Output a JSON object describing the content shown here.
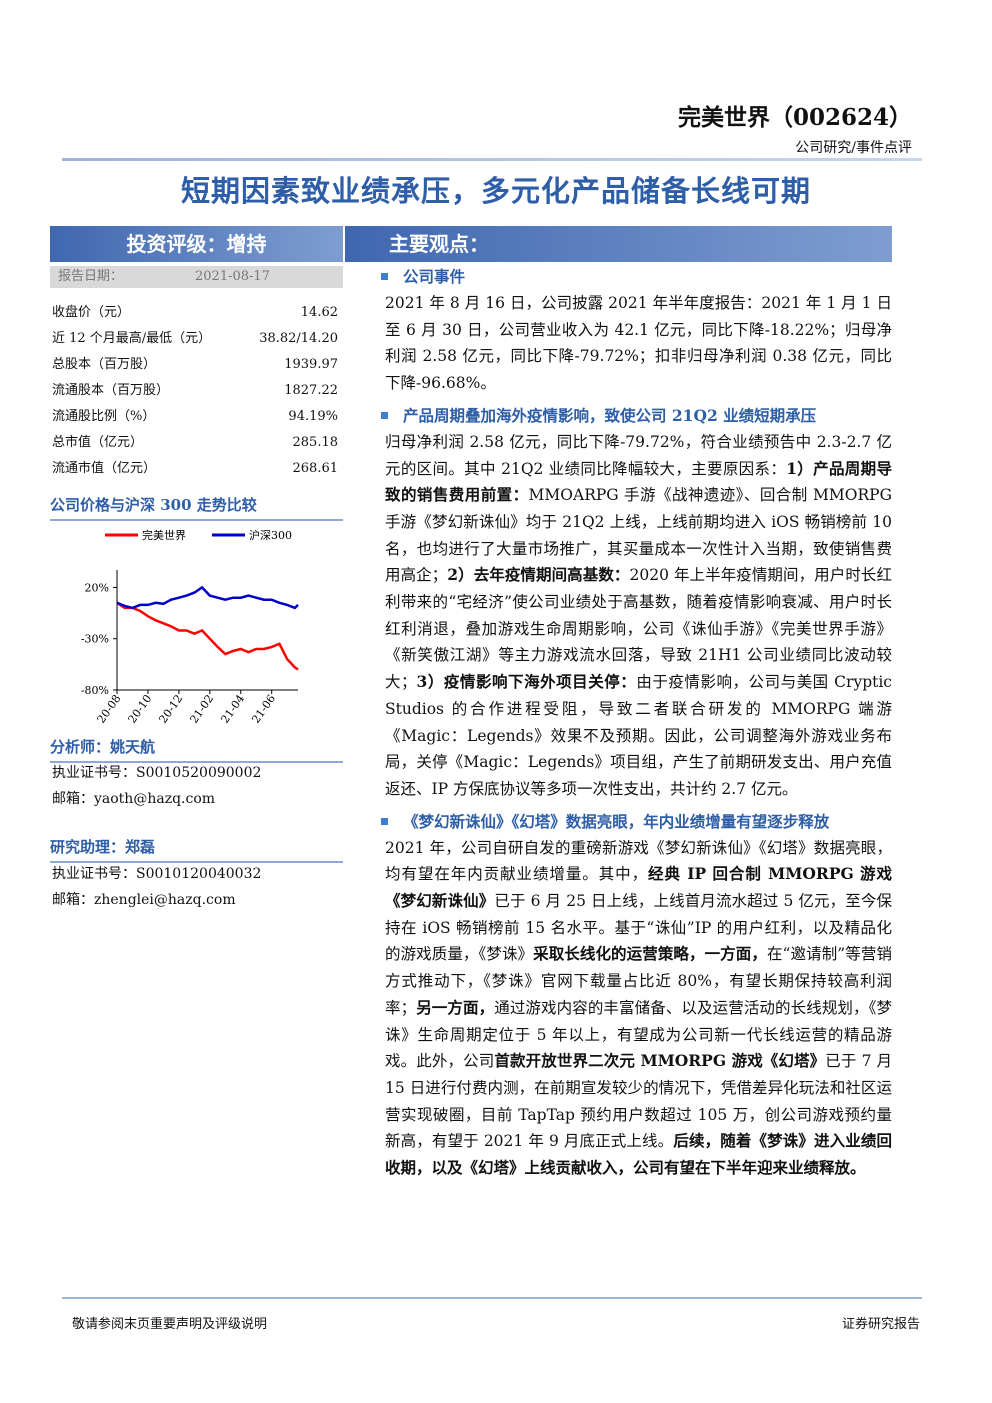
{
  "header": {
    "company": "完美世界（002624）",
    "category": "公司研究/事件点评"
  },
  "title": "短期因素致业绩承压，多元化产品储备长线可期",
  "sidebar": {
    "rating": "投资评级：增持",
    "report_date": {
      "label": "报告日期：",
      "value": "2021-08-17"
    },
    "stats": [
      {
        "label": "收盘价（元）",
        "value": "14.62"
      },
      {
        "label": "近 12 个月最高/最低（元）",
        "value": "38.82/14.20"
      },
      {
        "label": "总股本（百万股）",
        "value": "1939.97"
      },
      {
        "label": "流通股本（百万股）",
        "value": "1827.22"
      },
      {
        "label": "流通股比例（%）",
        "value": "94.19%"
      },
      {
        "label": "总市值（亿元）",
        "value": "285.18"
      },
      {
        "label": "流通市值（亿元）",
        "value": "268.61"
      }
    ],
    "chart_title": "公司价格与沪深 300 走势比较",
    "analyst": {
      "name": "分析师：姚天航",
      "license": "执业证书号：S0010520090002",
      "email": "邮箱：yaoth@hazq.com"
    },
    "assistant": {
      "name": "研究助理：郑磊",
      "license": "执业证书号：S0010120040032",
      "email": "邮箱：zhenglei@hazq.com"
    }
  },
  "chart_data": {
    "type": "line",
    "x": [
      0,
      0.5,
      1,
      1.5,
      2,
      2.5,
      3,
      3.5,
      4,
      4.5,
      5,
      5.5,
      6,
      6.5,
      7,
      7.5,
      8,
      8.5,
      9,
      9.5,
      10,
      10.5,
      11,
      11.5,
      11.7
    ],
    "xlim": [
      0,
      11.7
    ],
    "xticks": [
      {
        "value": 0,
        "label": "20-08"
      },
      {
        "value": 2,
        "label": "20-10"
      },
      {
        "value": 4,
        "label": "20-12"
      },
      {
        "value": 6,
        "label": "21-02"
      },
      {
        "value": 8,
        "label": "21-04"
      },
      {
        "value": 10,
        "label": "21-06"
      }
    ],
    "ylim": [
      -80,
      37
    ],
    "yticks": [
      {
        "value": 20,
        "label": "20%"
      },
      {
        "value": -30,
        "label": "-30%"
      },
      {
        "value": -80,
        "label": "-80%"
      }
    ],
    "series": [
      {
        "name": "完美世界",
        "color": "#ff0000",
        "values": [
          5,
          0,
          0,
          -3,
          -8,
          -12,
          -15,
          -18,
          -22,
          -22,
          -25,
          -22,
          -30,
          -38,
          -45,
          -42,
          -40,
          -43,
          -40,
          -40,
          -38,
          -35,
          -50,
          -58,
          -60
        ]
      },
      {
        "name": "沪深300",
        "color": "#0000cc",
        "values": [
          5,
          2,
          0,
          3,
          3,
          5,
          4,
          8,
          10,
          12,
          15,
          20,
          12,
          10,
          8,
          10,
          10,
          12,
          10,
          8,
          8,
          5,
          3,
          0,
          3
        ]
      }
    ]
  },
  "main": {
    "heading": "主要观点：",
    "sections": [
      {
        "heading": "公司事件",
        "runs": [
          {
            "text": "2021 年 8 月 16 日，公司披露 2021 年半年度报告：2021 年 1 月 1 日至 6 月 30 日，公司营业收入为 42.1 亿元，同比下降-18.22%；归母净利润 2.58 亿元，同比下降-79.72%；扣非归母净利润 0.38 亿元，同比下降-96.68%。",
            "bold": false
          }
        ]
      },
      {
        "heading": "产品周期叠加海外疫情影响，致使公司 21Q2 业绩短期承压",
        "runs": [
          {
            "text": "归母净利润 2.58 亿元，同比下降-79.72%，符合业绩预告中 2.3-2.7 亿元的区间。其中 21Q2 业绩同比降幅较大，主要原因系：",
            "bold": false
          },
          {
            "text": "1）产品周期导致的销售费用前置：",
            "bold": true
          },
          {
            "text": "MMOARPG 手游《战神遗迹》、回合制 MMORPG 手游《梦幻新诛仙》均于 21Q2 上线，上线前期均进入 iOS 畅销榜前 10 名，也均进行了大量市场推广，其买量成本一次性计入当期，致使销售费用高企；",
            "bold": false
          },
          {
            "text": "2）去年疫情期间高基数：",
            "bold": true
          },
          {
            "text": "2020 年上半年疫情期间，用户时长红利带来的“宅经济”使公司业绩处于高基数，随着疫情影响衰减、用户时长红利消退，叠加游戏生命周期影响，公司《诛仙手游》《完美世界手游》《新笑傲江湖》等主力游戏流水回落，导致 21H1 公司业绩同比波动较大；",
            "bold": false
          },
          {
            "text": "3）疫情影响下海外项目关停：",
            "bold": true
          },
          {
            "text": "由于疫情影响，公司与美国 Cryptic Studios 的合作进程受阻，导致二者联合研发的 MMORPG 端游《Magic：Legends》效果不及预期。因此，公司调整海外游戏业务布局，关停《Magic：Legends》项目组，产生了前期研发支出、用户充值返还、IP 方保底协议等多项一次性支出，共计约 2.7 亿元。",
            "bold": false
          }
        ]
      },
      {
        "heading": "《梦幻新诛仙》《幻塔》数据亮眼，年内业绩增量有望逐步释放",
        "runs": [
          {
            "text": "2021 年，公司自研自发的重磅新游戏《梦幻新诛仙》《幻塔》数据亮眼，均有望在年内贡献业绩增量。其中，",
            "bold": false
          },
          {
            "text": "经典 IP 回合制 MMORPG 游戏《梦幻新诛仙》",
            "bold": true
          },
          {
            "text": "已于 6 月 25 日上线，上线首月流水超过 5 亿元，至今保持在 iOS 畅销榜前 15 名水平。基于“诛仙”IP 的用户红利，以及精品化的游戏质量，《梦诛》",
            "bold": false
          },
          {
            "text": "采取长线化的运营策略，一方面，",
            "bold": true
          },
          {
            "text": "在“邀请制”等营销方式推动下，《梦诛》官网下载量占比近 80%，有望长期保持较高利润率；",
            "bold": false
          },
          {
            "text": "另一方面，",
            "bold": true
          },
          {
            "text": "通过游戏内容的丰富储备、以及运营活动的长线规划，《梦诛》生命周期定位于 5 年以上，有望成为公司新一代长线运营的精品游戏。此外，公司",
            "bold": false
          },
          {
            "text": "首款开放世界二次元 MMORPG 游戏《幻塔》",
            "bold": true
          },
          {
            "text": "已于 7 月 15 日进行付费内测，在前期宣发较少的情况下，凭借差异化玩法和社区运营实现破圈，目前 TapTap 预约用户数超过 105 万，创公司游戏预约量新高，有望于 2021 年 9 月底正式上线。",
            "bold": false
          },
          {
            "text": "后续，随着《梦诛》进入业绩回收期，以及《幻塔》上线贡献收入，公司有望在下半年迎来业绩释放。",
            "bold": true
          }
        ]
      }
    ]
  },
  "footer": {
    "left": "敬请参阅末页重要声明及评级说明",
    "right": "证券研究报告"
  }
}
